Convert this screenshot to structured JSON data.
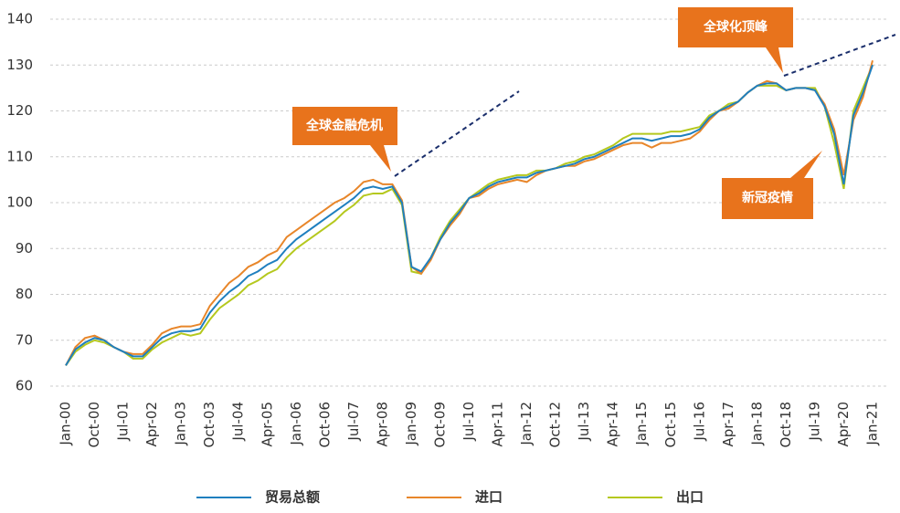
{
  "chart_data": {
    "type": "line",
    "categories": [
      "Jan-00",
      null,
      null,
      "Oct-00",
      null,
      null,
      "Jul-01",
      null,
      null,
      "Apr-02",
      null,
      null,
      "Jan-03",
      null,
      null,
      "Oct-03",
      null,
      null,
      "Jul-04",
      null,
      null,
      "Apr-05",
      null,
      null,
      "Jan-06",
      null,
      null,
      "Oct-06",
      null,
      null,
      "Jul-07",
      null,
      null,
      "Apr-08",
      null,
      null,
      "Jan-09",
      null,
      null,
      "Oct-09",
      null,
      null,
      "Jul-10",
      null,
      null,
      "Apr-11",
      null,
      null,
      "Jan-12",
      null,
      null,
      "Oct-12",
      null,
      null,
      "Jul-13",
      null,
      null,
      "Apr-14",
      null,
      null,
      "Jan-15",
      null,
      null,
      "Oct-15",
      null,
      null,
      "Jul-16",
      null,
      null,
      "Apr-17",
      null,
      null,
      "Jan-18",
      null,
      null,
      "Oct-18",
      null,
      null,
      "Jul-19",
      null,
      null,
      "Apr-20",
      null,
      null,
      "Jan-21"
    ],
    "series": [
      {
        "name": "贸易总额",
        "color": "#1f7fbf",
        "values": [
          64.5,
          68,
          69.5,
          70.5,
          70,
          68.5,
          67.5,
          66.5,
          66.5,
          68.5,
          70.5,
          71.5,
          72,
          72,
          72.5,
          76,
          78.5,
          80.5,
          82,
          84,
          85,
          86.5,
          87.5,
          90,
          92,
          93.5,
          95,
          96.5,
          98,
          99.5,
          101,
          103,
          103.5,
          103,
          103.5,
          100,
          86,
          85,
          88,
          92,
          95.5,
          98,
          101,
          102,
          103.5,
          104.5,
          105,
          105.5,
          105.5,
          106.5,
          107,
          107.5,
          108,
          108.5,
          109.5,
          110,
          111,
          112,
          113,
          114,
          114,
          113.5,
          114,
          114.5,
          114.5,
          115,
          116,
          118.5,
          120,
          121,
          122,
          124,
          125.5,
          126,
          126,
          124.5,
          125,
          125,
          124.5,
          121,
          115,
          104,
          119,
          124,
          130
        ]
      },
      {
        "name": "进口",
        "color": "#e8862a",
        "values": [
          64.5,
          68.5,
          70.5,
          71,
          70,
          68.5,
          67.5,
          67,
          67,
          69,
          71.5,
          72.5,
          73,
          73,
          73.5,
          77.5,
          80,
          82.5,
          84,
          86,
          87,
          88.5,
          89.5,
          92.5,
          94,
          95.5,
          97,
          98.5,
          100,
          101,
          102.5,
          104.5,
          105,
          104,
          104,
          100.5,
          86,
          84.5,
          87.5,
          92,
          95,
          97.5,
          101,
          101.5,
          103,
          104,
          104.5,
          105,
          104.5,
          106,
          107,
          107.5,
          108,
          108,
          109,
          109.5,
          110.5,
          111.5,
          112.5,
          113,
          113,
          112,
          113,
          113,
          113.5,
          114,
          115.5,
          118,
          120,
          120.5,
          122,
          124,
          125.5,
          126.5,
          126,
          124.5,
          125,
          125,
          124.5,
          121.5,
          116,
          106,
          118,
          123,
          131
        ]
      },
      {
        "name": "出口",
        "color": "#b5c81e",
        "values": [
          64.5,
          67.5,
          69,
          70,
          69.5,
          68.5,
          67.5,
          66,
          66,
          68,
          69.5,
          70.5,
          71.5,
          71,
          71.5,
          74.5,
          77,
          78.5,
          80,
          82,
          83,
          84.5,
          85.5,
          88,
          90,
          91.5,
          93,
          94.5,
          96,
          98,
          99.5,
          101.5,
          102,
          102,
          103,
          99.5,
          85,
          84.5,
          88,
          92.5,
          96,
          98.5,
          101,
          102.5,
          104,
          105,
          105.5,
          106,
          106,
          107,
          107,
          107.5,
          108.5,
          109,
          110,
          110.5,
          111.5,
          112.5,
          114,
          115,
          115,
          115,
          115,
          115.5,
          115.5,
          116,
          116.5,
          119,
          120,
          121.5,
          122,
          124,
          125.5,
          125.5,
          125.5,
          124.5,
          125,
          125,
          125,
          121,
          113,
          103,
          120,
          125,
          130
        ]
      }
    ],
    "ylim": [
      60,
      140
    ],
    "yticks": [
      60,
      70,
      80,
      90,
      100,
      110,
      120,
      130,
      140
    ],
    "grid": true,
    "annotations": [
      "全球金融危机",
      "全球化顶峰",
      "新冠疫情"
    ]
  }
}
